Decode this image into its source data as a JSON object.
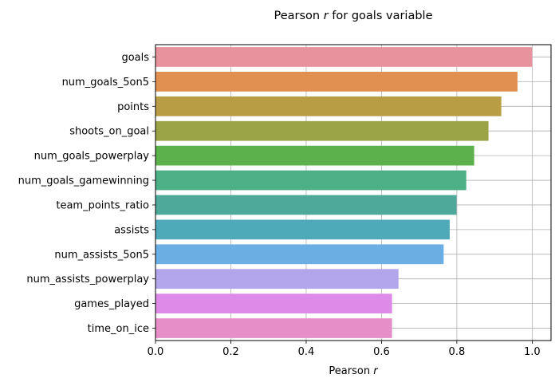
{
  "chart_data": {
    "type": "bar",
    "orientation": "horizontal",
    "title_prefix": "Pearson ",
    "title_symbol": "r",
    "title_suffix": " for goals variable",
    "xlabel_prefix": "Pearson ",
    "xlabel_symbol": "r",
    "ylabel": "",
    "xlim": [
      0,
      1.05
    ],
    "xticks": [
      0.0,
      0.2,
      0.4,
      0.6,
      0.8,
      1.0
    ],
    "xtick_labels": [
      "0.0",
      "0.2",
      "0.4",
      "0.6",
      "0.8",
      "1.0"
    ],
    "grid": true,
    "categories": [
      "goals",
      "num_goals_5on5",
      "points",
      "shoots_on_goal",
      "num_goals_powerplay",
      "num_goals_gamewinning",
      "team_points_ratio",
      "assists",
      "num_assists_5on5",
      "num_assists_powerplay",
      "games_played",
      "time_on_ice"
    ],
    "values": [
      1.0,
      0.961,
      0.918,
      0.884,
      0.846,
      0.825,
      0.799,
      0.781,
      0.765,
      0.645,
      0.628,
      0.628
    ],
    "colors": [
      "#e8929e",
      "#e28f52",
      "#b89d45",
      "#9aa346",
      "#5cb14d",
      "#4daf85",
      "#4ea99a",
      "#4eaab9",
      "#6aaee3",
      "#b2a5ec",
      "#de8ae8",
      "#e58fc6"
    ]
  }
}
